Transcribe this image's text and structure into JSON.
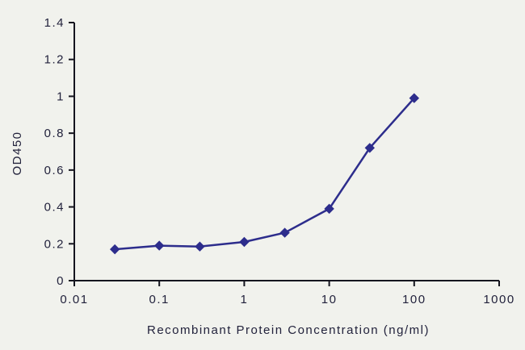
{
  "chart_data": {
    "type": "line",
    "title": "",
    "xlabel": "Recombinant Protein Concentration (ng/ml)",
    "ylabel": "OD450",
    "x_scale": "log",
    "xlim": [
      0.01,
      1000
    ],
    "x_ticks": [
      0.01,
      0.1,
      1,
      10,
      100,
      1000
    ],
    "x_tick_labels": [
      "0.01",
      "0.1",
      "1",
      "10",
      "100",
      "1000"
    ],
    "ylim": [
      0,
      1.4
    ],
    "y_ticks": [
      0,
      0.2,
      0.4,
      0.6,
      0.8,
      1,
      1.2,
      1.4
    ],
    "y_tick_labels": [
      "0",
      "0.2",
      "0.4",
      "0.6",
      "0.8",
      "1",
      "1.2",
      "1.4"
    ],
    "grid": false,
    "legend": "none",
    "series": [
      {
        "name": "OD450",
        "marker": "diamond",
        "x": [
          0.03,
          0.1,
          0.3,
          1,
          3,
          10,
          30,
          100
        ],
        "y": [
          0.17,
          0.19,
          0.185,
          0.21,
          0.26,
          0.39,
          0.72,
          0.99
        ]
      }
    ]
  },
  "colors": {
    "background": "#f1f2ed",
    "axis": "#15151f",
    "text": "#22223c",
    "series": "#2d2d8c"
  }
}
